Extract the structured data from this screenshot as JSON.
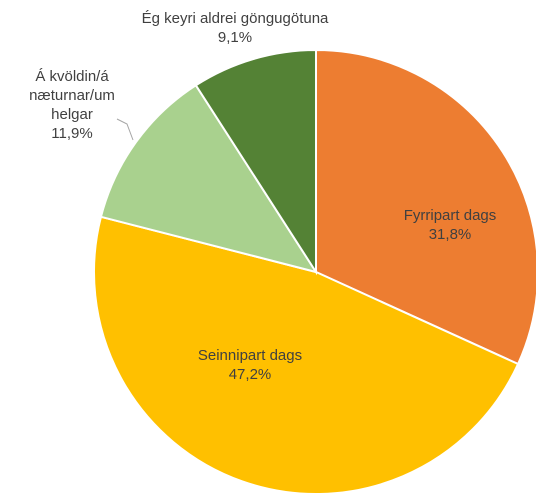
{
  "chart_data": {
    "type": "pie",
    "categories": [
      "Fyrripart dags",
      "Seinnipart dags",
      "Á kvöldin/á næturnar/um helgar",
      "Ég keyri aldrei göngugötuna"
    ],
    "values": [
      31.8,
      47.2,
      11.9,
      9.1
    ],
    "value_labels": [
      "31,8%",
      "47,2%",
      "11,9%",
      "9,1%"
    ],
    "colors": [
      "#ED7D31",
      "#FFC000",
      "#A9D18E",
      "#548235"
    ]
  }
}
